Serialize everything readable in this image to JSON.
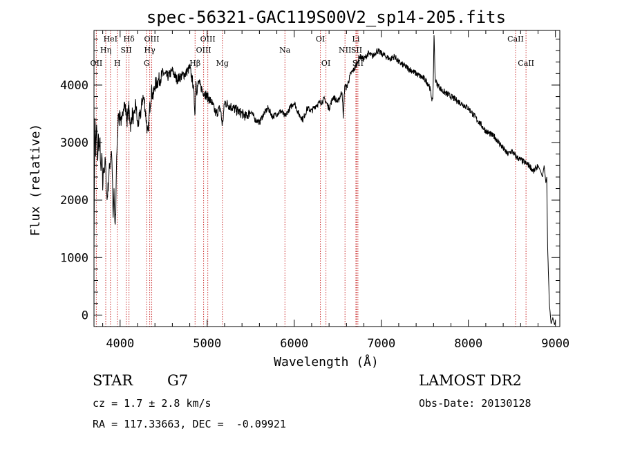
{
  "chart_data": {
    "type": "line",
    "title": "spec-56321-GAC119S00V2_sp14-205.fits",
    "xlabel": "Wavelength (Å)",
    "ylabel": "Flux (relative)",
    "xlim": [
      3700,
      9050
    ],
    "ylim": [
      -200,
      4950
    ],
    "x_ticks": [
      4000,
      5000,
      6000,
      7000,
      8000,
      9000
    ],
    "y_ticks": [
      0,
      1000,
      2000,
      3000,
      4000
    ],
    "grid": false,
    "series": [
      {
        "x": [
          3700,
          3710,
          3720,
          3730,
          3740,
          3750,
          3760,
          3770,
          3780,
          3790,
          3800,
          3810,
          3820,
          3830,
          3840,
          3850,
          3860,
          3870,
          3880,
          3890,
          3900,
          3910,
          3920,
          3930,
          3940,
          3950,
          3960,
          3970,
          3980,
          3990,
          4000,
          4020,
          4040,
          4060,
          4080,
          4100,
          4120,
          4140,
          4160,
          4180,
          4200,
          4220,
          4240,
          4260,
          4280,
          4300,
          4320,
          4340,
          4360,
          4380,
          4400,
          4450,
          4500,
          4550,
          4600,
          4650,
          4700,
          4750,
          4800,
          4840,
          4861,
          4870,
          4880,
          4900,
          4950,
          5000,
          5050,
          5100,
          5150,
          5175,
          5200,
          5250,
          5300,
          5350,
          5400,
          5450,
          5500,
          5550,
          5600,
          5650,
          5700,
          5750,
          5800,
          5850,
          5893,
          5950,
          6000,
          6050,
          6100,
          6150,
          6200,
          6250,
          6300,
          6350,
          6400,
          6450,
          6500,
          6550,
          6563,
          6580,
          6600,
          6650,
          6700,
          6750,
          6800,
          6850,
          6900,
          6950,
          7000,
          7050,
          7100,
          7150,
          7200,
          7250,
          7300,
          7350,
          7400,
          7450,
          7500,
          7550,
          7590,
          7600,
          7605,
          7610,
          7620,
          7630,
          7650,
          7700,
          7750,
          7800,
          7850,
          7900,
          7950,
          8000,
          8050,
          8100,
          8150,
          8200,
          8250,
          8300,
          8350,
          8400,
          8450,
          8500,
          8550,
          8600,
          8650,
          8700,
          8750,
          8800,
          8830,
          8850,
          8870,
          8890,
          8900,
          8910,
          8930,
          8950,
          8970,
          8990,
          9000
        ],
        "y": [
          1200,
          3500,
          2800,
          3300,
          2600,
          3100,
          2900,
          3000,
          2400,
          2800,
          2200,
          2600,
          2500,
          2700,
          2300,
          2000,
          2200,
          2400,
          2600,
          2700,
          2900,
          2500,
          1600,
          2200,
          1500,
          1800,
          2800,
          3000,
          3600,
          3400,
          3500,
          3300,
          3700,
          3600,
          3400,
          3600,
          3300,
          3500,
          3400,
          3700,
          3300,
          3400,
          3550,
          3800,
          3700,
          3400,
          3100,
          3600,
          3900,
          3800,
          4000,
          4100,
          4200,
          4150,
          4250,
          4100,
          4150,
          4200,
          4300,
          4000,
          3500,
          4100,
          3900,
          4050,
          3900,
          3800,
          3700,
          3500,
          3600,
          3300,
          3700,
          3650,
          3600,
          3550,
          3500,
          3450,
          3550,
          3400,
          3350,
          3500,
          3600,
          3450,
          3500,
          3550,
          3450,
          3600,
          3700,
          3500,
          3400,
          3600,
          3550,
          3650,
          3700,
          3750,
          3600,
          3800,
          3700,
          3900,
          3400,
          4000,
          3950,
          4200,
          4300,
          4500,
          4450,
          4550,
          4500,
          4600,
          4550,
          4500,
          4450,
          4500,
          4400,
          4350,
          4300,
          4250,
          4200,
          4150,
          4100,
          4000,
          3700,
          4300,
          4900,
          4600,
          4100,
          4050,
          4000,
          3900,
          3850,
          3800,
          3750,
          3700,
          3650,
          3600,
          3500,
          3400,
          3300,
          3200,
          3150,
          3100,
          3000,
          2900,
          2800,
          2850,
          2750,
          2700,
          2650,
          2600,
          2500,
          2600,
          2500,
          2400,
          2600,
          2300,
          2400,
          1200,
          200,
          -150,
          -50,
          -170,
          -100
        ]
      }
    ],
    "spectral_lines": [
      {
        "label": "OII",
        "wavelength": 3727,
        "row": 3
      },
      {
        "label": "Hη",
        "wavelength": 3835,
        "row": 2
      },
      {
        "label": "HeI",
        "wavelength": 3889,
        "row": 1
      },
      {
        "label": "H",
        "wavelength": 3968,
        "row": 3
      },
      {
        "label": "SII",
        "wavelength": 4070,
        "row": 2
      },
      {
        "label": "Hδ",
        "wavelength": 4102,
        "row": 1
      },
      {
        "label": "G",
        "wavelength": 4305,
        "row": 3
      },
      {
        "label": "Hγ",
        "wavelength": 4340,
        "row": 2
      },
      {
        "label": "OIII",
        "wavelength": 4363,
        "row": 1
      },
      {
        "label": "Hβ",
        "wavelength": 4861,
        "row": 3
      },
      {
        "label": "OIII",
        "wavelength": 4959,
        "row": 2
      },
      {
        "label": "OIII",
        "wavelength": 5007,
        "row": 1
      },
      {
        "label": "Mg",
        "wavelength": 5175,
        "row": 3
      },
      {
        "label": "Na",
        "wavelength": 5893,
        "row": 2
      },
      {
        "label": "OI",
        "wavelength": 6300,
        "row": 1
      },
      {
        "label": "OI",
        "wavelength": 6364,
        "row": 3
      },
      {
        "label": "NII",
        "wavelength": 6583,
        "row": 2
      },
      {
        "label": "Li",
        "wavelength": 6708,
        "row": 1
      },
      {
        "label": "SII",
        "wavelength": 6716,
        "row": 2
      },
      {
        "label": "SII",
        "wavelength": 6731,
        "row": 3
      },
      {
        "label": "CaII",
        "wavelength": 8542,
        "row": 1
      },
      {
        "label": "CaII",
        "wavelength": 8662,
        "row": 3
      }
    ],
    "line_marker_color": "#cc3333",
    "trace_color": "#000000"
  },
  "info": {
    "object_class": "STAR",
    "subclass": "G7",
    "survey": "LAMOST DR2",
    "redshift_text": "cz = 1.7 ± 2.8 km/s",
    "obs_date_text": "Obs-Date: 20130128",
    "coords_text": "RA = 117.33663, DEC =  -0.09921"
  }
}
